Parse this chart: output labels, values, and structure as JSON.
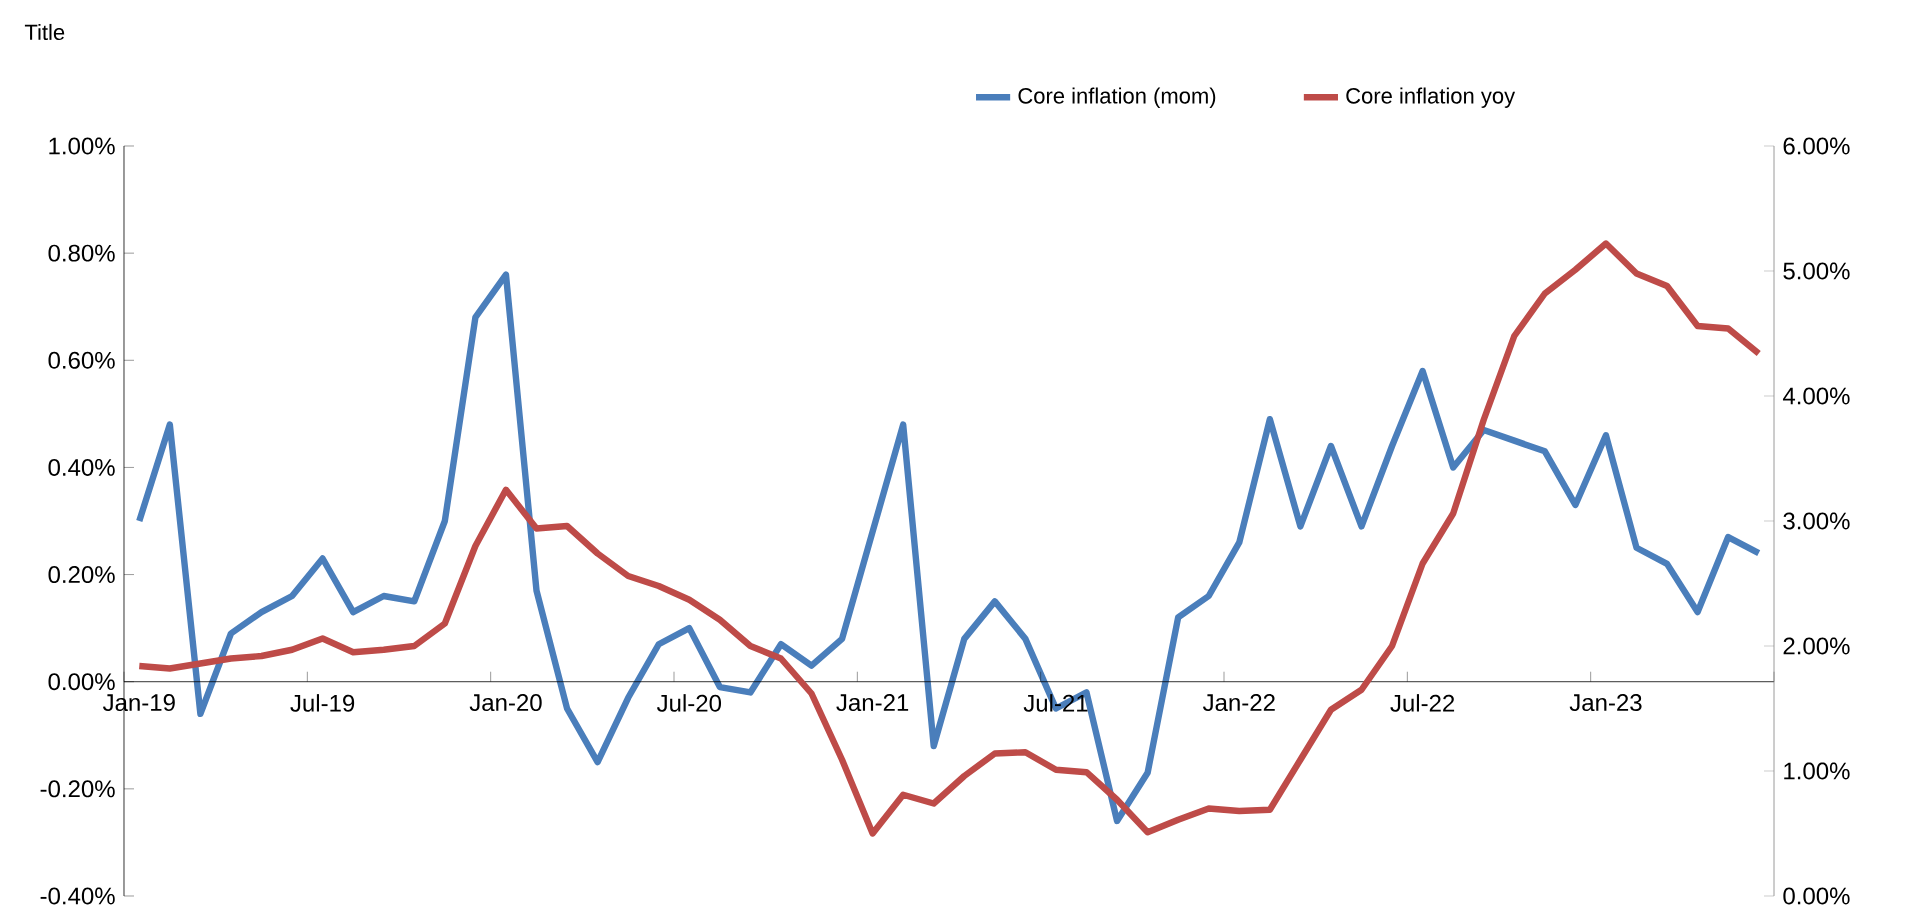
{
  "chart_data": {
    "type": "line",
    "title": "Title",
    "categories": [
      "Jan-19",
      null,
      null,
      null,
      null,
      null,
      "Jul-19",
      null,
      null,
      null,
      null,
      null,
      "Jan-20",
      null,
      null,
      null,
      null,
      null,
      "Jul-20",
      null,
      null,
      null,
      null,
      null,
      "Jan-21",
      null,
      null,
      null,
      null,
      null,
      "Jul-21",
      null,
      null,
      null,
      null,
      null,
      "Jan-22",
      null,
      null,
      null,
      null,
      null,
      "Jul-22",
      null,
      null,
      null,
      null,
      null,
      "Jan-23",
      null,
      null,
      null,
      null,
      null
    ],
    "series": [
      {
        "name": "Core inflation (mom)",
        "color": "#4a7ebb",
        "values": [
          0.3,
          0.48,
          -0.06,
          0.09,
          0.13,
          0.16,
          0.23,
          0.13,
          0.16,
          0.15,
          0.3,
          0.68,
          0.76,
          0.17,
          -0.05,
          -0.15,
          -0.03,
          0.07,
          0.1,
          -0.01,
          -0.02,
          0.07,
          0.03,
          0.08,
          0.28,
          0.48,
          -0.12,
          0.08,
          0.15,
          0.08,
          -0.05,
          -0.02,
          -0.26,
          -0.17,
          0.12,
          0.16,
          0.26,
          0.49,
          0.29,
          0.44,
          0.29,
          0.44,
          0.58,
          0.4,
          0.47,
          0.45,
          0.43,
          0.33,
          0.46,
          0.25,
          0.22,
          0.13,
          0.27,
          0.24
        ]
      },
      {
        "name": "Core inflation yoy",
        "color": "#be4b48",
        "axis": "y2",
        "values": [
          1.84,
          1.82,
          1.86,
          1.9,
          1.92,
          1.97,
          2.06,
          1.95,
          1.97,
          2.0,
          2.18,
          2.8,
          3.25,
          2.94,
          2.96,
          2.74,
          2.56,
          2.48,
          2.37,
          2.21,
          2.0,
          1.9,
          1.62,
          1.09,
          0.5,
          0.81,
          0.74,
          0.96,
          1.14,
          1.15,
          1.01,
          0.99,
          0.77,
          0.51,
          0.61,
          0.7,
          0.68,
          0.69,
          1.09,
          1.49,
          1.65,
          2.0,
          2.66,
          3.06,
          3.81,
          4.48,
          4.82,
          5.01,
          5.22,
          4.98,
          4.88,
          4.56,
          4.54,
          4.34
        ]
      }
    ],
    "ylim": [
      -0.4,
      1.0
    ],
    "yticks": [
      {
        "value": -0.4,
        "label": "-0.40%"
      },
      {
        "value": -0.2,
        "label": "-0.20%"
      },
      {
        "value": 0,
        "label": "0.00%"
      },
      {
        "value": 0.2,
        "label": "0.20%"
      },
      {
        "value": 0.4,
        "label": "0.40%"
      },
      {
        "value": 0.6,
        "label": "0.60%"
      },
      {
        "value": 0.8,
        "label": "0.80%"
      },
      {
        "value": 1.0,
        "label": "1.00%"
      }
    ],
    "y2lim": [
      0,
      6
    ],
    "y2ticks": [
      {
        "value": 0,
        "label": "0.00%"
      },
      {
        "value": 1,
        "label": "1.00%"
      },
      {
        "value": 2,
        "label": "2.00%"
      },
      {
        "value": 3,
        "label": "3.00%"
      },
      {
        "value": 4,
        "label": "4.00%"
      },
      {
        "value": 5,
        "label": "5.00%"
      },
      {
        "value": 6,
        "label": "6.00%"
      }
    ],
    "legend": "top"
  }
}
